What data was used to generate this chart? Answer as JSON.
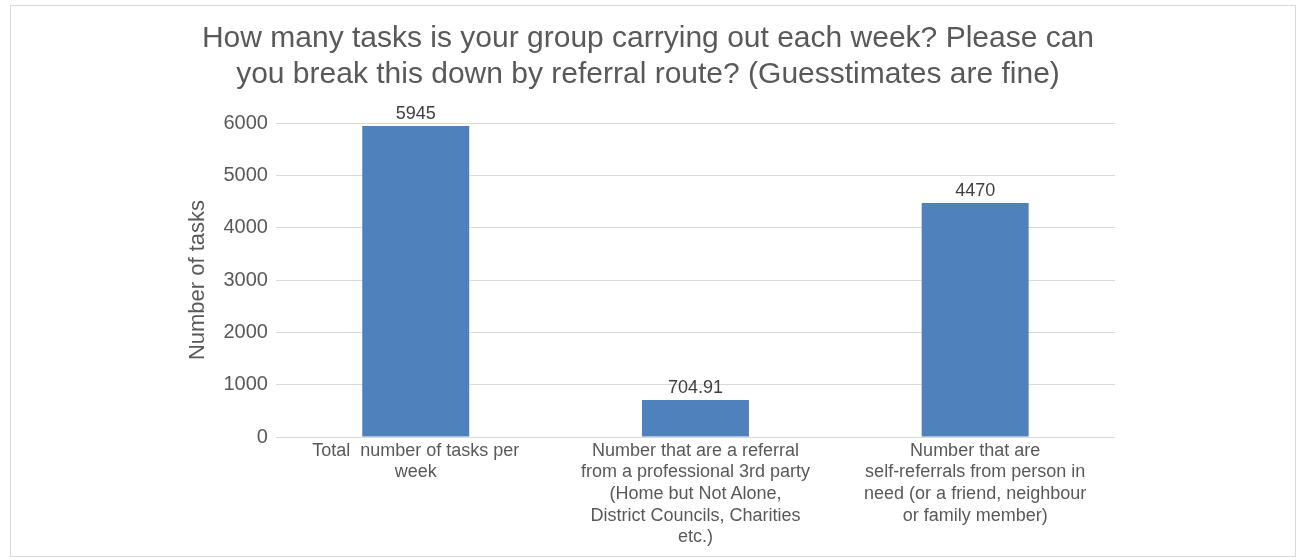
{
  "chart_data": {
    "type": "bar",
    "title": "How many tasks is your group carrying out each week? Please can you break this down by referral route? (Guesstimates are fine)",
    "ylabel": "Number of tasks",
    "categories": [
      "Total  number of tasks per week",
      "Number that are a referral from a professional 3rd party (Home but Not Alone, District Councils, Charities etc.)",
      "Number that are self-referrals from person in need (or a friend, neighbour or family member)"
    ],
    "values": [
      5945,
      704.91,
      4470
    ],
    "color": "#4f81bd",
    "ylim": [
      0,
      6000
    ],
    "yticks": [
      0,
      1000,
      2000,
      3000,
      4000,
      5000,
      6000
    ],
    "grid": "y",
    "data_labels": true
  }
}
